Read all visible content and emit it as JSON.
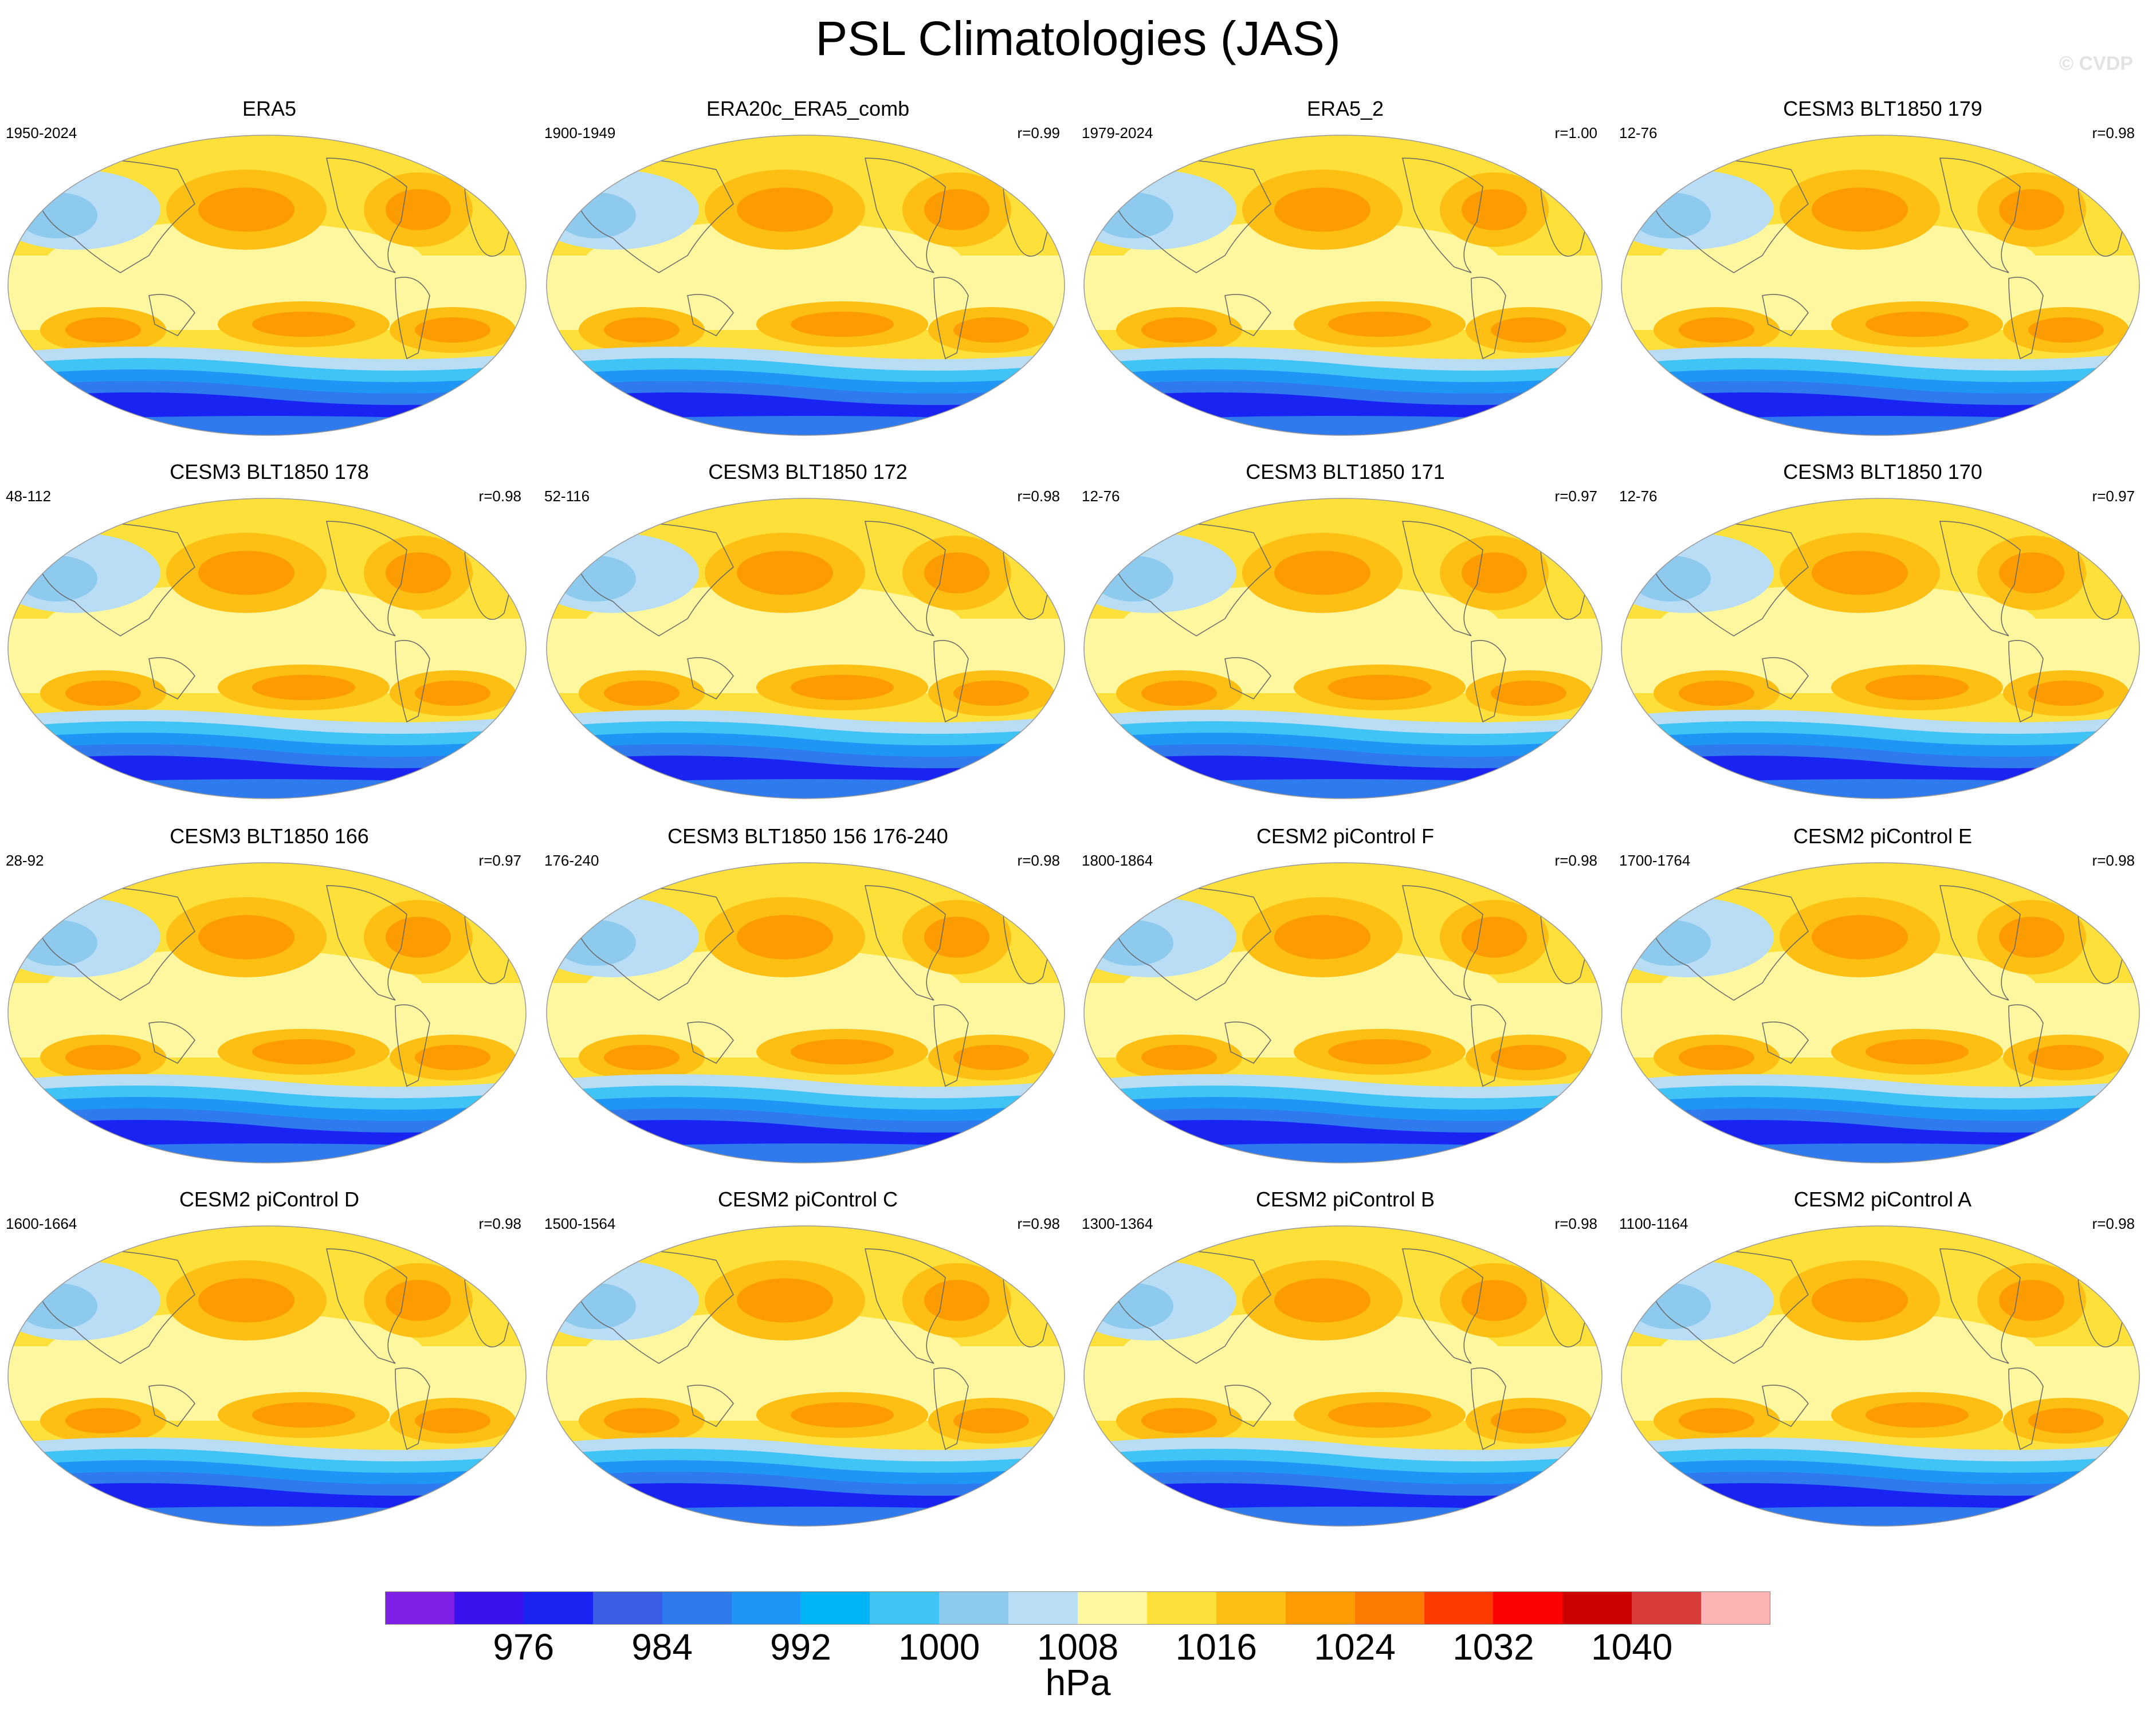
{
  "title": "PSL Climatologies (JAS)",
  "watermark": "© CVDP",
  "panels": [
    {
      "name": "ERA5",
      "years": "1950-2024",
      "corr": ""
    },
    {
      "name": "ERA20c_ERA5_comb",
      "years": "1900-1949",
      "corr": "r=0.99"
    },
    {
      "name": "ERA5_2",
      "years": "1979-2024",
      "corr": "r=1.00"
    },
    {
      "name": "CESM3 BLT1850 179",
      "years": "12-76",
      "corr": "r=0.98"
    },
    {
      "name": "CESM3 BLT1850 178",
      "years": "48-112",
      "corr": "r=0.98"
    },
    {
      "name": "CESM3 BLT1850 172",
      "years": "52-116",
      "corr": "r=0.98"
    },
    {
      "name": "CESM3 BLT1850 171",
      "years": "12-76",
      "corr": "r=0.97"
    },
    {
      "name": "CESM3 BLT1850 170",
      "years": "12-76",
      "corr": "r=0.97"
    },
    {
      "name": "CESM3 BLT1850 166",
      "years": "28-92",
      "corr": "r=0.97"
    },
    {
      "name": "CESM3 BLT1850 156 176-240",
      "years": "176-240",
      "corr": "r=0.98"
    },
    {
      "name": "CESM2 piControl F",
      "years": "1800-1864",
      "corr": "r=0.98"
    },
    {
      "name": "CESM2 piControl E",
      "years": "1700-1764",
      "corr": "r=0.98"
    },
    {
      "name": "CESM2 piControl D",
      "years": "1600-1664",
      "corr": "r=0.98"
    },
    {
      "name": "CESM2 piControl C",
      "years": "1500-1564",
      "corr": "r=0.98"
    },
    {
      "name": "CESM2 piControl B",
      "years": "1300-1364",
      "corr": "r=0.98"
    },
    {
      "name": "CESM2 piControl A",
      "years": "1100-1164",
      "corr": "r=0.98"
    }
  ],
  "colorbar": {
    "units": "hPa",
    "labels": [
      "976",
      "984",
      "992",
      "1000",
      "1008",
      "1016",
      "1024",
      "1032",
      "1040"
    ],
    "colors": [
      "#7f1fe6",
      "#3a12ee",
      "#1a24f2",
      "#3a5ce6",
      "#2f7aee",
      "#1f96f5",
      "#00b4f5",
      "#40c4f5",
      "#8ecaee",
      "#b8ddf5",
      "#fdf8a0",
      "#fde13a",
      "#fdbf14",
      "#fd9c00",
      "#fd7a00",
      "#fd3a00",
      "#fd0000",
      "#cc0000",
      "#d93a3a",
      "#fdb4b4"
    ]
  }
}
